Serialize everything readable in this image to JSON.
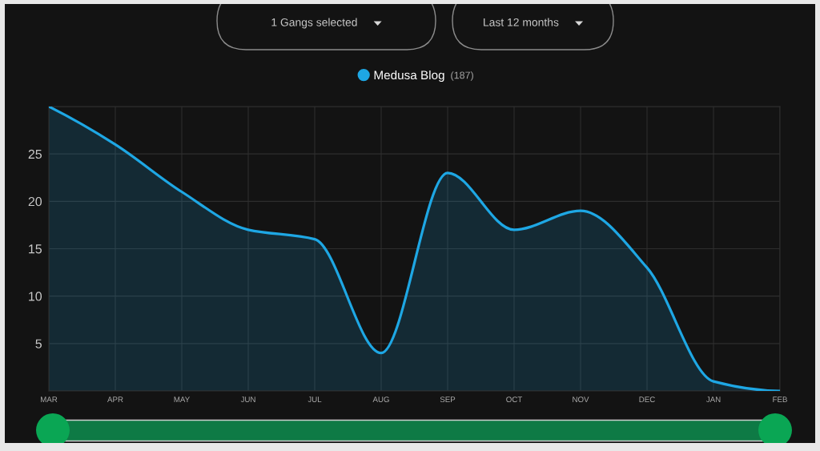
{
  "chart_data": {
    "type": "area",
    "categories": [
      "MAR",
      "APR",
      "MAY",
      "JUN",
      "JUL",
      "AUG",
      "SEP",
      "OCT",
      "NOV",
      "DEC",
      "JAN",
      "FEB"
    ],
    "series": [
      {
        "name": "Medusa Blog",
        "color": "#1ea7e4",
        "values": [
          30,
          26,
          21,
          17,
          16,
          4,
          23,
          17,
          19,
          13,
          1,
          0
        ]
      }
    ],
    "ylim": [
      0,
      30
    ],
    "yticks": [
      {
        "value": 0,
        "label": null
      },
      5,
      10,
      15,
      20,
      25,
      {
        "value": 30,
        "label": null
      }
    ],
    "grid": true,
    "legend": "top",
    "annotations": [
      "1 Gangs selected",
      "Last 12 months",
      "(187)"
    ]
  }
}
